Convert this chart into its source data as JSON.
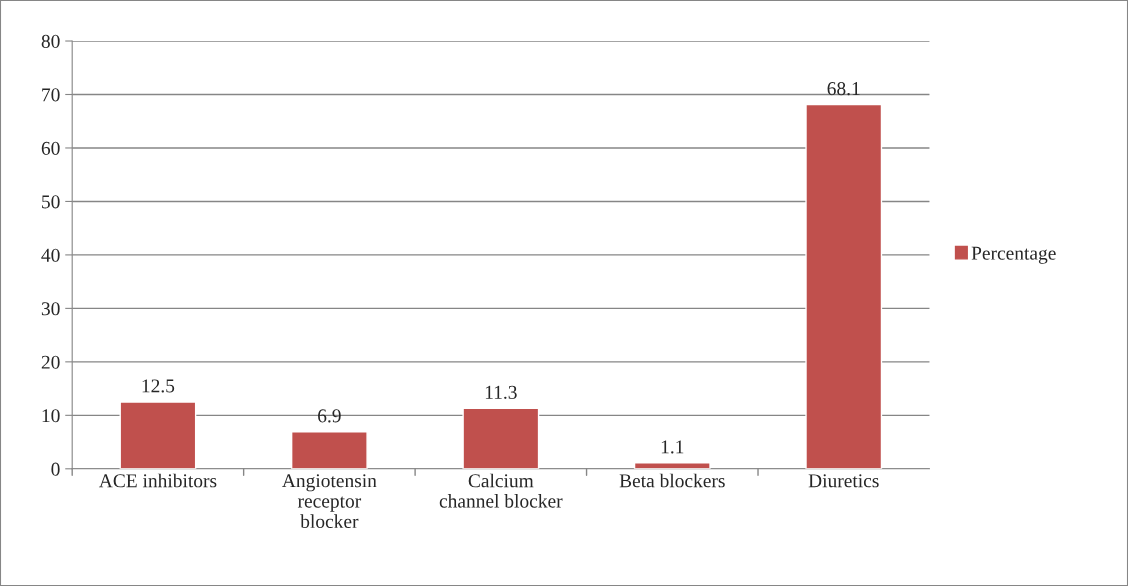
{
  "chart_data": {
    "type": "bar",
    "categories": [
      "ACE inhibitors",
      "Angiotensin\nreceptor\nblocker",
      "Calcium\nchannel blocker",
      "Beta blockers",
      "Diuretics"
    ],
    "series": [
      {
        "name": "Percentage",
        "color": "#c0504d",
        "values": [
          12.5,
          6.9,
          11.3,
          1.1,
          68.1
        ]
      }
    ],
    "ylim": [
      0,
      80
    ],
    "yticks": [
      0,
      10,
      20,
      30,
      40,
      50,
      60,
      70,
      80
    ],
    "grid": "y",
    "legend": "right",
    "data_labels": true
  }
}
